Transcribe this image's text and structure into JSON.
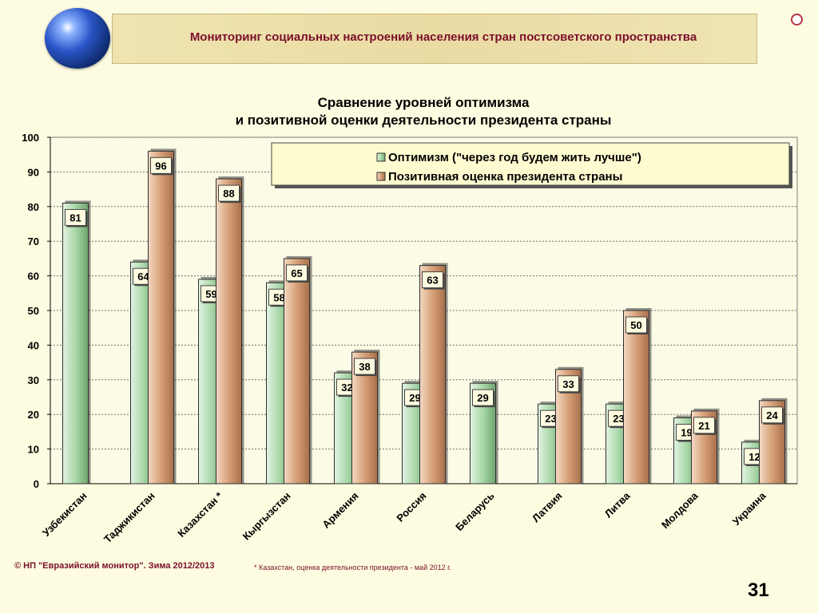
{
  "banner": {
    "title": "Мониторинг социальных настроений населения стран постсоветского пространства"
  },
  "footer": {
    "copyright": "© НП \"Евразийский монитор\". Зима 2012/2013",
    "note": "* Казахстан, оценка деятельности президента - май 2012 г.",
    "page_number": "31"
  },
  "colors": {
    "banner_title": "#7a0f2a",
    "series_optimism": "#a9d7a9",
    "series_approval": "#d6a078",
    "legend_bg": "#fffbd0"
  },
  "chart_data": {
    "type": "bar",
    "title_lines": [
      "Сравнение уровней оптимизма",
      "и позитивной оценки деятельности президента страны"
    ],
    "categories": [
      "Узбекистан",
      "Таджикистан",
      "Казахстан *",
      "Кыргызстан",
      "Армения",
      "Россия",
      "Беларусь",
      "Латвия",
      "Литва",
      "Молдова",
      "Украина"
    ],
    "series": [
      {
        "name": "Оптимизм (\"через год будем жить лучше\")",
        "values": [
          81,
          64,
          59,
          58,
          32,
          29,
          29,
          23,
          23,
          19,
          12
        ]
      },
      {
        "name": "Позитивная оценка президента страны",
        "values": [
          null,
          96,
          88,
          65,
          38,
          63,
          null,
          33,
          50,
          21,
          24
        ]
      }
    ],
    "ylim": [
      0,
      100
    ],
    "yticks": [
      0,
      10,
      20,
      30,
      40,
      50,
      60,
      70,
      80,
      90,
      100
    ],
    "grid": true,
    "legend_position": "top-right"
  }
}
